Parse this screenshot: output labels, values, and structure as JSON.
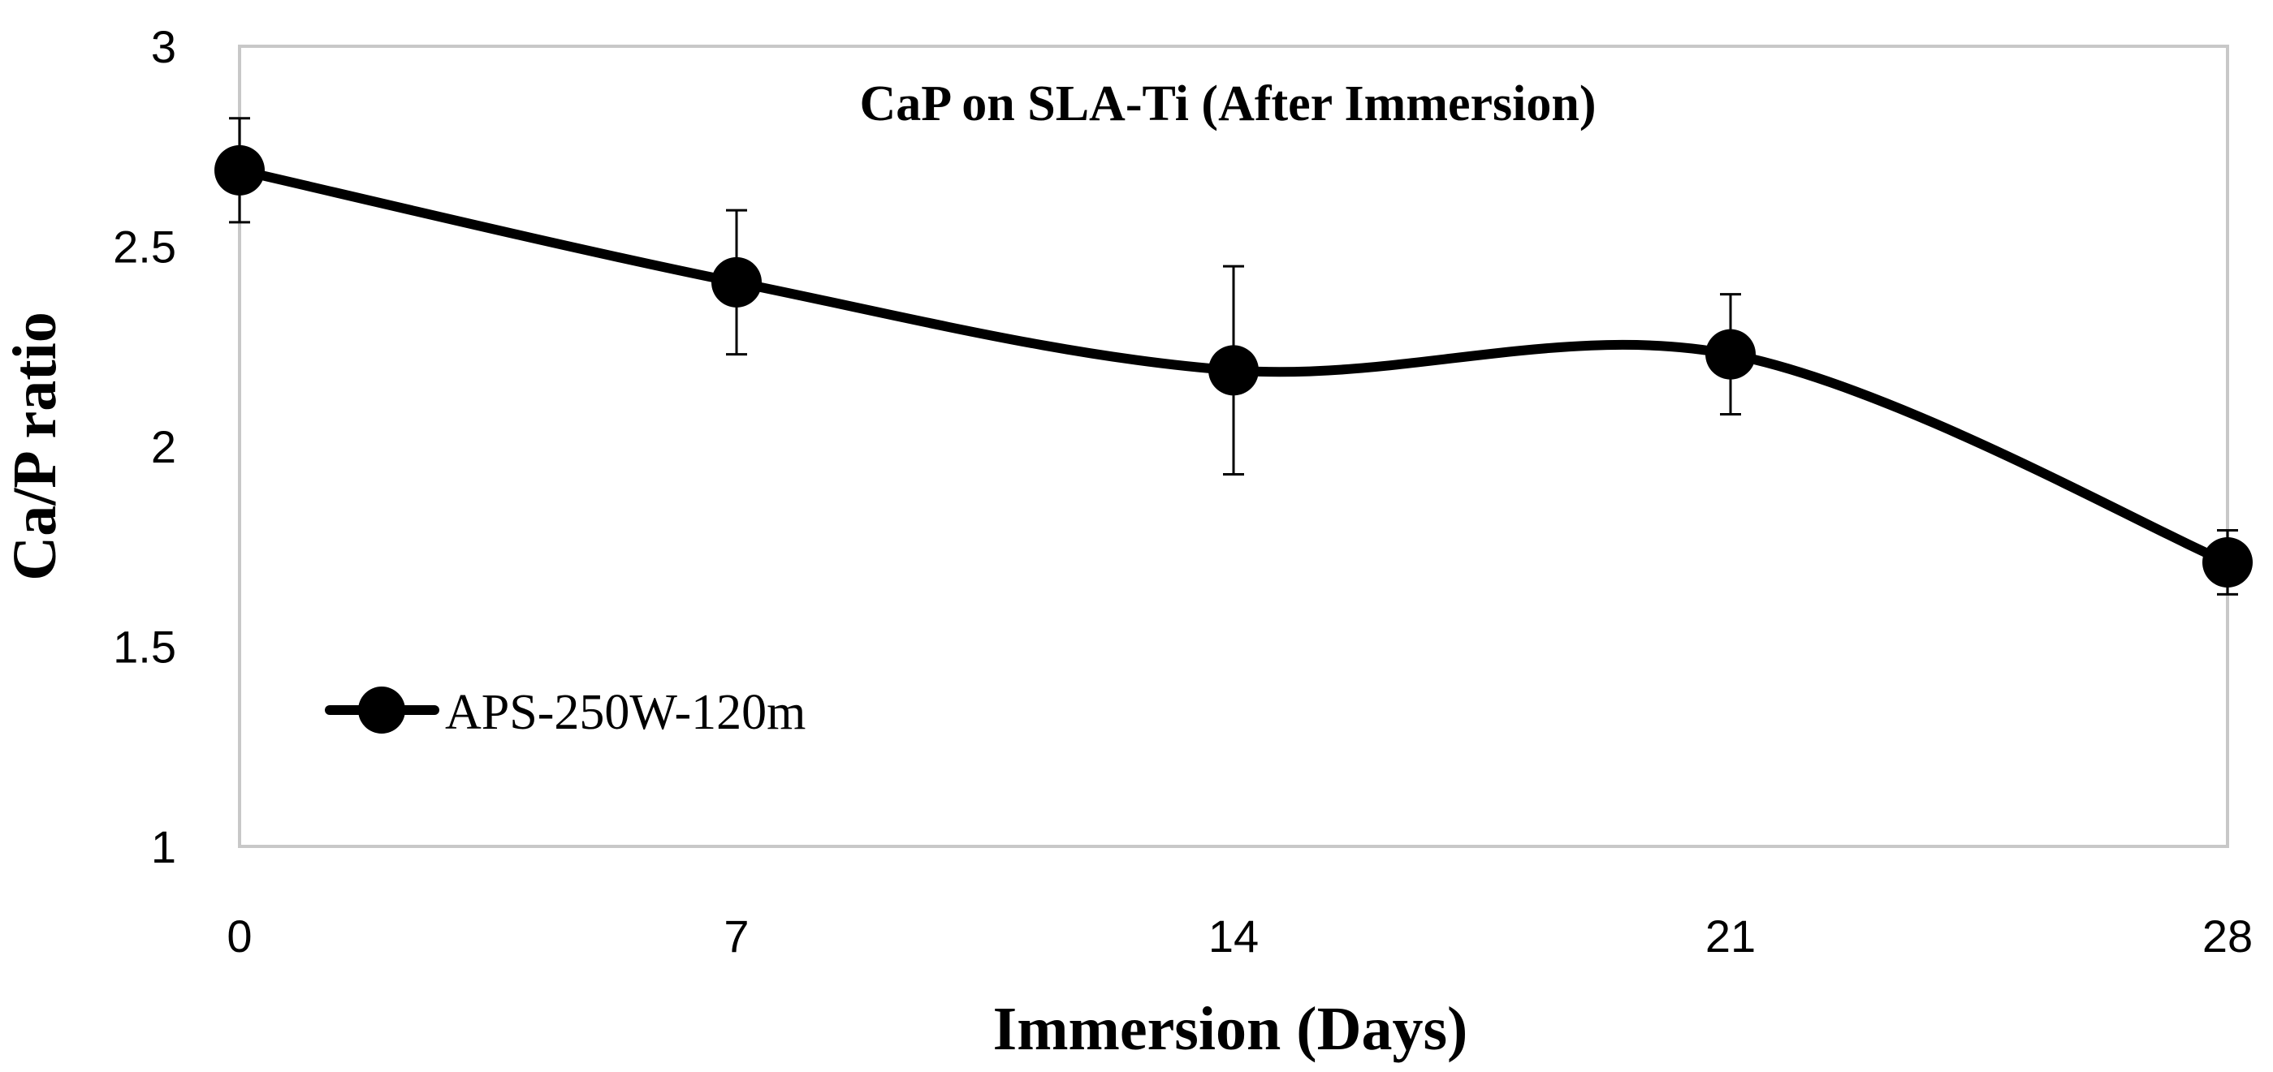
{
  "chart_data": {
    "type": "line",
    "title": "CaP on SLA-Ti (After Immersion)",
    "xlabel": "Immersion (Days)",
    "ylabel": "Ca/P ratio",
    "x": [
      0,
      7,
      14,
      21,
      28
    ],
    "x_tick_labels": [
      "0",
      "7",
      "14",
      "21",
      "28"
    ],
    "ylim": [
      1,
      3
    ],
    "y_ticks": [
      1,
      1.5,
      2,
      2.5,
      3
    ],
    "y_tick_labels": [
      "1",
      "1.5",
      "2",
      "2.5",
      "3"
    ],
    "series": [
      {
        "name": "APS-250W-120m",
        "values": [
          2.69,
          2.41,
          2.19,
          2.23,
          1.71
        ],
        "error": [
          0.13,
          0.18,
          0.26,
          0.15,
          0.08
        ],
        "color": "#000000",
        "marker": "circle",
        "smooth": true
      }
    ],
    "legend_position": "lower-left",
    "grid": false
  }
}
